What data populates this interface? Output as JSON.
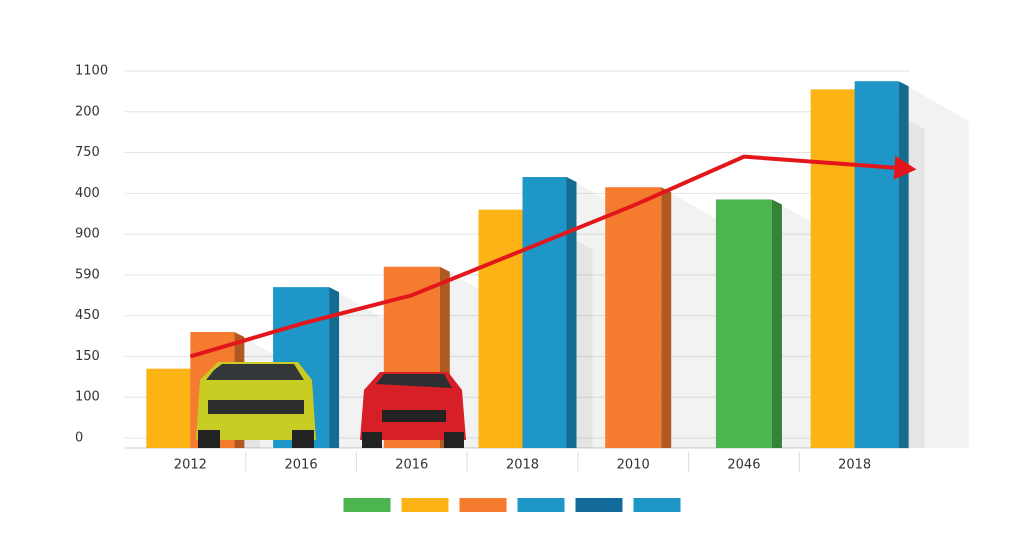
{
  "chart_data": {
    "type": "bar",
    "categories": [
      "2012",
      "2016",
      "2016",
      "2018",
      "2010",
      "2046",
      "2018"
    ],
    "series": [
      {
        "color": "#4cb54f",
        "values": [
          null,
          null,
          null,
          null,
          null,
          5.85,
          null
        ]
      },
      {
        "color": "#fbb316",
        "values": [
          1.7,
          null,
          null,
          5.6,
          null,
          null,
          8.55
        ]
      },
      {
        "color": "#f57c2e",
        "values": [
          2.6,
          null,
          4.2,
          null,
          6.15,
          null,
          null
        ]
      },
      {
        "color": "#1e96c8",
        "values": [
          null,
          3.7,
          null,
          6.4,
          null,
          null,
          8.75
        ]
      }
    ],
    "trend": {
      "type": "line",
      "color": "#e3161b",
      "values": [
        2.0,
        2.8,
        3.5,
        4.6,
        5.7,
        6.9,
        6.7
      ]
    },
    "legend_colors": [
      "#4cb54f",
      "#fbb316",
      "#f57c2e",
      "#1e96c8",
      "#126b9b",
      "#1e96c8"
    ],
    "ylim": [
      0,
      9
    ],
    "yticks": [
      {
        "value": 0,
        "label": "0"
      },
      {
        "value": 1,
        "label": "100"
      },
      {
        "value": 2,
        "label": "150"
      },
      {
        "value": 3,
        "label": "450"
      },
      {
        "value": 4,
        "label": "590"
      },
      {
        "value": 5,
        "label": "900"
      },
      {
        "value": 6,
        "label": "400"
      },
      {
        "value": 7,
        "label": "750"
      },
      {
        "value": 8,
        "label": "200"
      },
      {
        "value": 9,
        "label": "1100"
      }
    ],
    "grid": true
  }
}
